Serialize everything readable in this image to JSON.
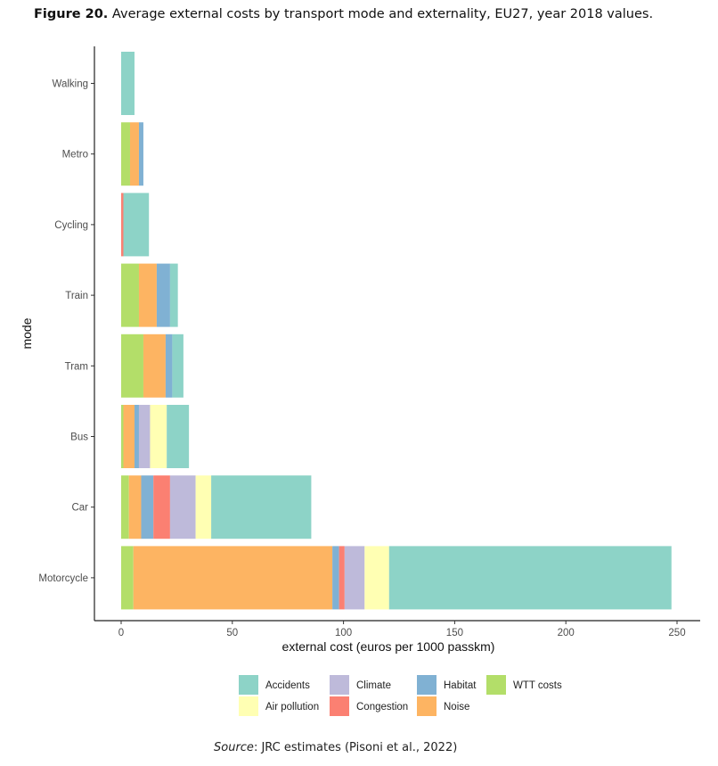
{
  "caption": {
    "label": "Figure 20.",
    "text": "Average external costs by transport mode and externality, EU27, year 2018 values."
  },
  "source": {
    "label": "Source",
    "text": ": JRC estimates (Pisoni et al., 2022)"
  },
  "chart_data": {
    "type": "bar",
    "orientation": "horizontal",
    "stacked": true,
    "xlabel": "external cost (euros per 1000 passkm)",
    "ylabel": "mode",
    "xlim": [
      0,
      250
    ],
    "xticks": [
      0,
      50,
      100,
      150,
      200,
      250
    ],
    "grid": false,
    "legend_position": "bottom",
    "categories": [
      "Walking",
      "Metro",
      "Cycling",
      "Train",
      "Tram",
      "Bus",
      "Car",
      "Motorcycle"
    ],
    "stack_order": [
      "WTT costs",
      "Noise",
      "Habitat",
      "Congestion",
      "Climate",
      "Air pollution",
      "Accidents"
    ],
    "series": [
      {
        "name": "Accidents",
        "color": "#8dd3c7",
        "values": [
          6.0,
          0.0,
          11.5,
          3.5,
          5.0,
          10.0,
          45.0,
          127.0
        ]
      },
      {
        "name": "Air pollution",
        "color": "#ffffb3",
        "values": [
          0.0,
          0.0,
          0.0,
          0.0,
          0.0,
          7.5,
          7.0,
          11.0
        ]
      },
      {
        "name": "Climate",
        "color": "#bebada",
        "values": [
          0.0,
          0.0,
          0.0,
          0.0,
          0.0,
          5.0,
          11.5,
          9.0
        ]
      },
      {
        "name": "Congestion",
        "color": "#fb8072",
        "values": [
          0.0,
          0.0,
          1.0,
          0.0,
          0.0,
          0.0,
          7.5,
          2.5
        ]
      },
      {
        "name": "Habitat",
        "color": "#80b1d3",
        "values": [
          0.0,
          2.0,
          0.0,
          6.0,
          3.0,
          2.0,
          5.5,
          3.0
        ]
      },
      {
        "name": "Noise",
        "color": "#fdb462",
        "values": [
          0.0,
          4.0,
          0.0,
          8.0,
          10.0,
          5.0,
          5.5,
          89.5
        ]
      },
      {
        "name": "WTT costs",
        "color": "#b3de69",
        "values": [
          0.0,
          4.0,
          0.0,
          8.0,
          10.0,
          1.0,
          3.5,
          5.5
        ]
      }
    ],
    "legend_entries": [
      "Accidents",
      "Climate",
      "Habitat",
      "WTT costs",
      "Air pollution",
      "Congestion",
      "Noise"
    ]
  }
}
